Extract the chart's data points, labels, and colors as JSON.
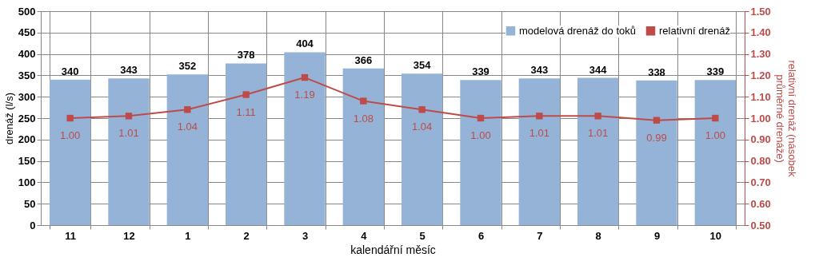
{
  "chart_data": {
    "type": "bar",
    "categories": [
      "11",
      "12",
      "1",
      "2",
      "3",
      "4",
      "5",
      "6",
      "7",
      "8",
      "9",
      "10"
    ],
    "xlabel": "kalendářní měsíc",
    "ylabel": "drenáž (l/s)",
    "y2label": "relativní drenáž (násobek průměrné drenáže)",
    "series": [
      {
        "name": "modelová drenáž do toků",
        "color": "#95b3d7",
        "values": [
          340,
          343,
          352,
          378,
          404,
          366,
          354,
          339,
          343,
          344,
          338,
          339
        ]
      },
      {
        "name": "relativní drenáž",
        "type": "line",
        "axis": "y2",
        "color": "#be4b48",
        "values": [
          1.0,
          1.01,
          1.04,
          1.11,
          1.19,
          1.08,
          1.04,
          1.0,
          1.01,
          1.01,
          0.99,
          1.0
        ],
        "value_labels": [
          "1.00",
          "1.01",
          "1.04",
          "1.11",
          "1.19",
          "1.08",
          "1.04",
          "1.00",
          "1.01",
          "1.01",
          "0.99",
          "1.00"
        ]
      }
    ],
    "ylim": [
      0,
      500
    ],
    "yticks": [
      0,
      50,
      100,
      150,
      200,
      250,
      300,
      350,
      400,
      450,
      500
    ],
    "y2lim": [
      0.5,
      1.5
    ],
    "y2ticks": [
      {
        "value": 0.5,
        "label": "0.50"
      },
      {
        "value": 0.6,
        "label": "0.60"
      },
      {
        "value": 0.7,
        "label": "0.70"
      },
      {
        "value": 0.8,
        "label": "0.80"
      },
      {
        "value": 0.9,
        "label": "0.90"
      },
      {
        "value": 1.0,
        "label": "1.00"
      },
      {
        "value": 1.1,
        "label": "1.10"
      },
      {
        "value": 1.2,
        "label": "1.20"
      },
      {
        "value": 1.3,
        "label": "1.30"
      },
      {
        "value": 1.4,
        "label": "1.40"
      },
      {
        "value": 1.5,
        "label": "1.50"
      }
    ],
    "grid": true,
    "legend": "top right",
    "marker": "square",
    "line_style": "solid",
    "data_labels": true
  }
}
